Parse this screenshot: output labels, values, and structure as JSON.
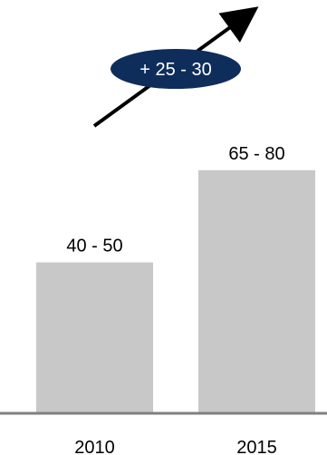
{
  "chart_data": {
    "type": "bar",
    "categories": [
      "2010",
      "2015"
    ],
    "values": [
      45,
      72.5
    ],
    "value_labels": [
      "40 - 50",
      "65 - 80"
    ],
    "ylim": [
      0,
      100
    ],
    "grid": false,
    "legend": "none",
    "annotation": {
      "label": "+ 25 - 30",
      "shape": "ellipse",
      "arrow": "upward trend arrow"
    }
  },
  "colors": {
    "bar": "#c8c8c8",
    "axis": "#808080",
    "arrow": "#000000",
    "badge_fill": "#0f2d5a",
    "badge_text": "#ffffff",
    "text": "#000000"
  }
}
